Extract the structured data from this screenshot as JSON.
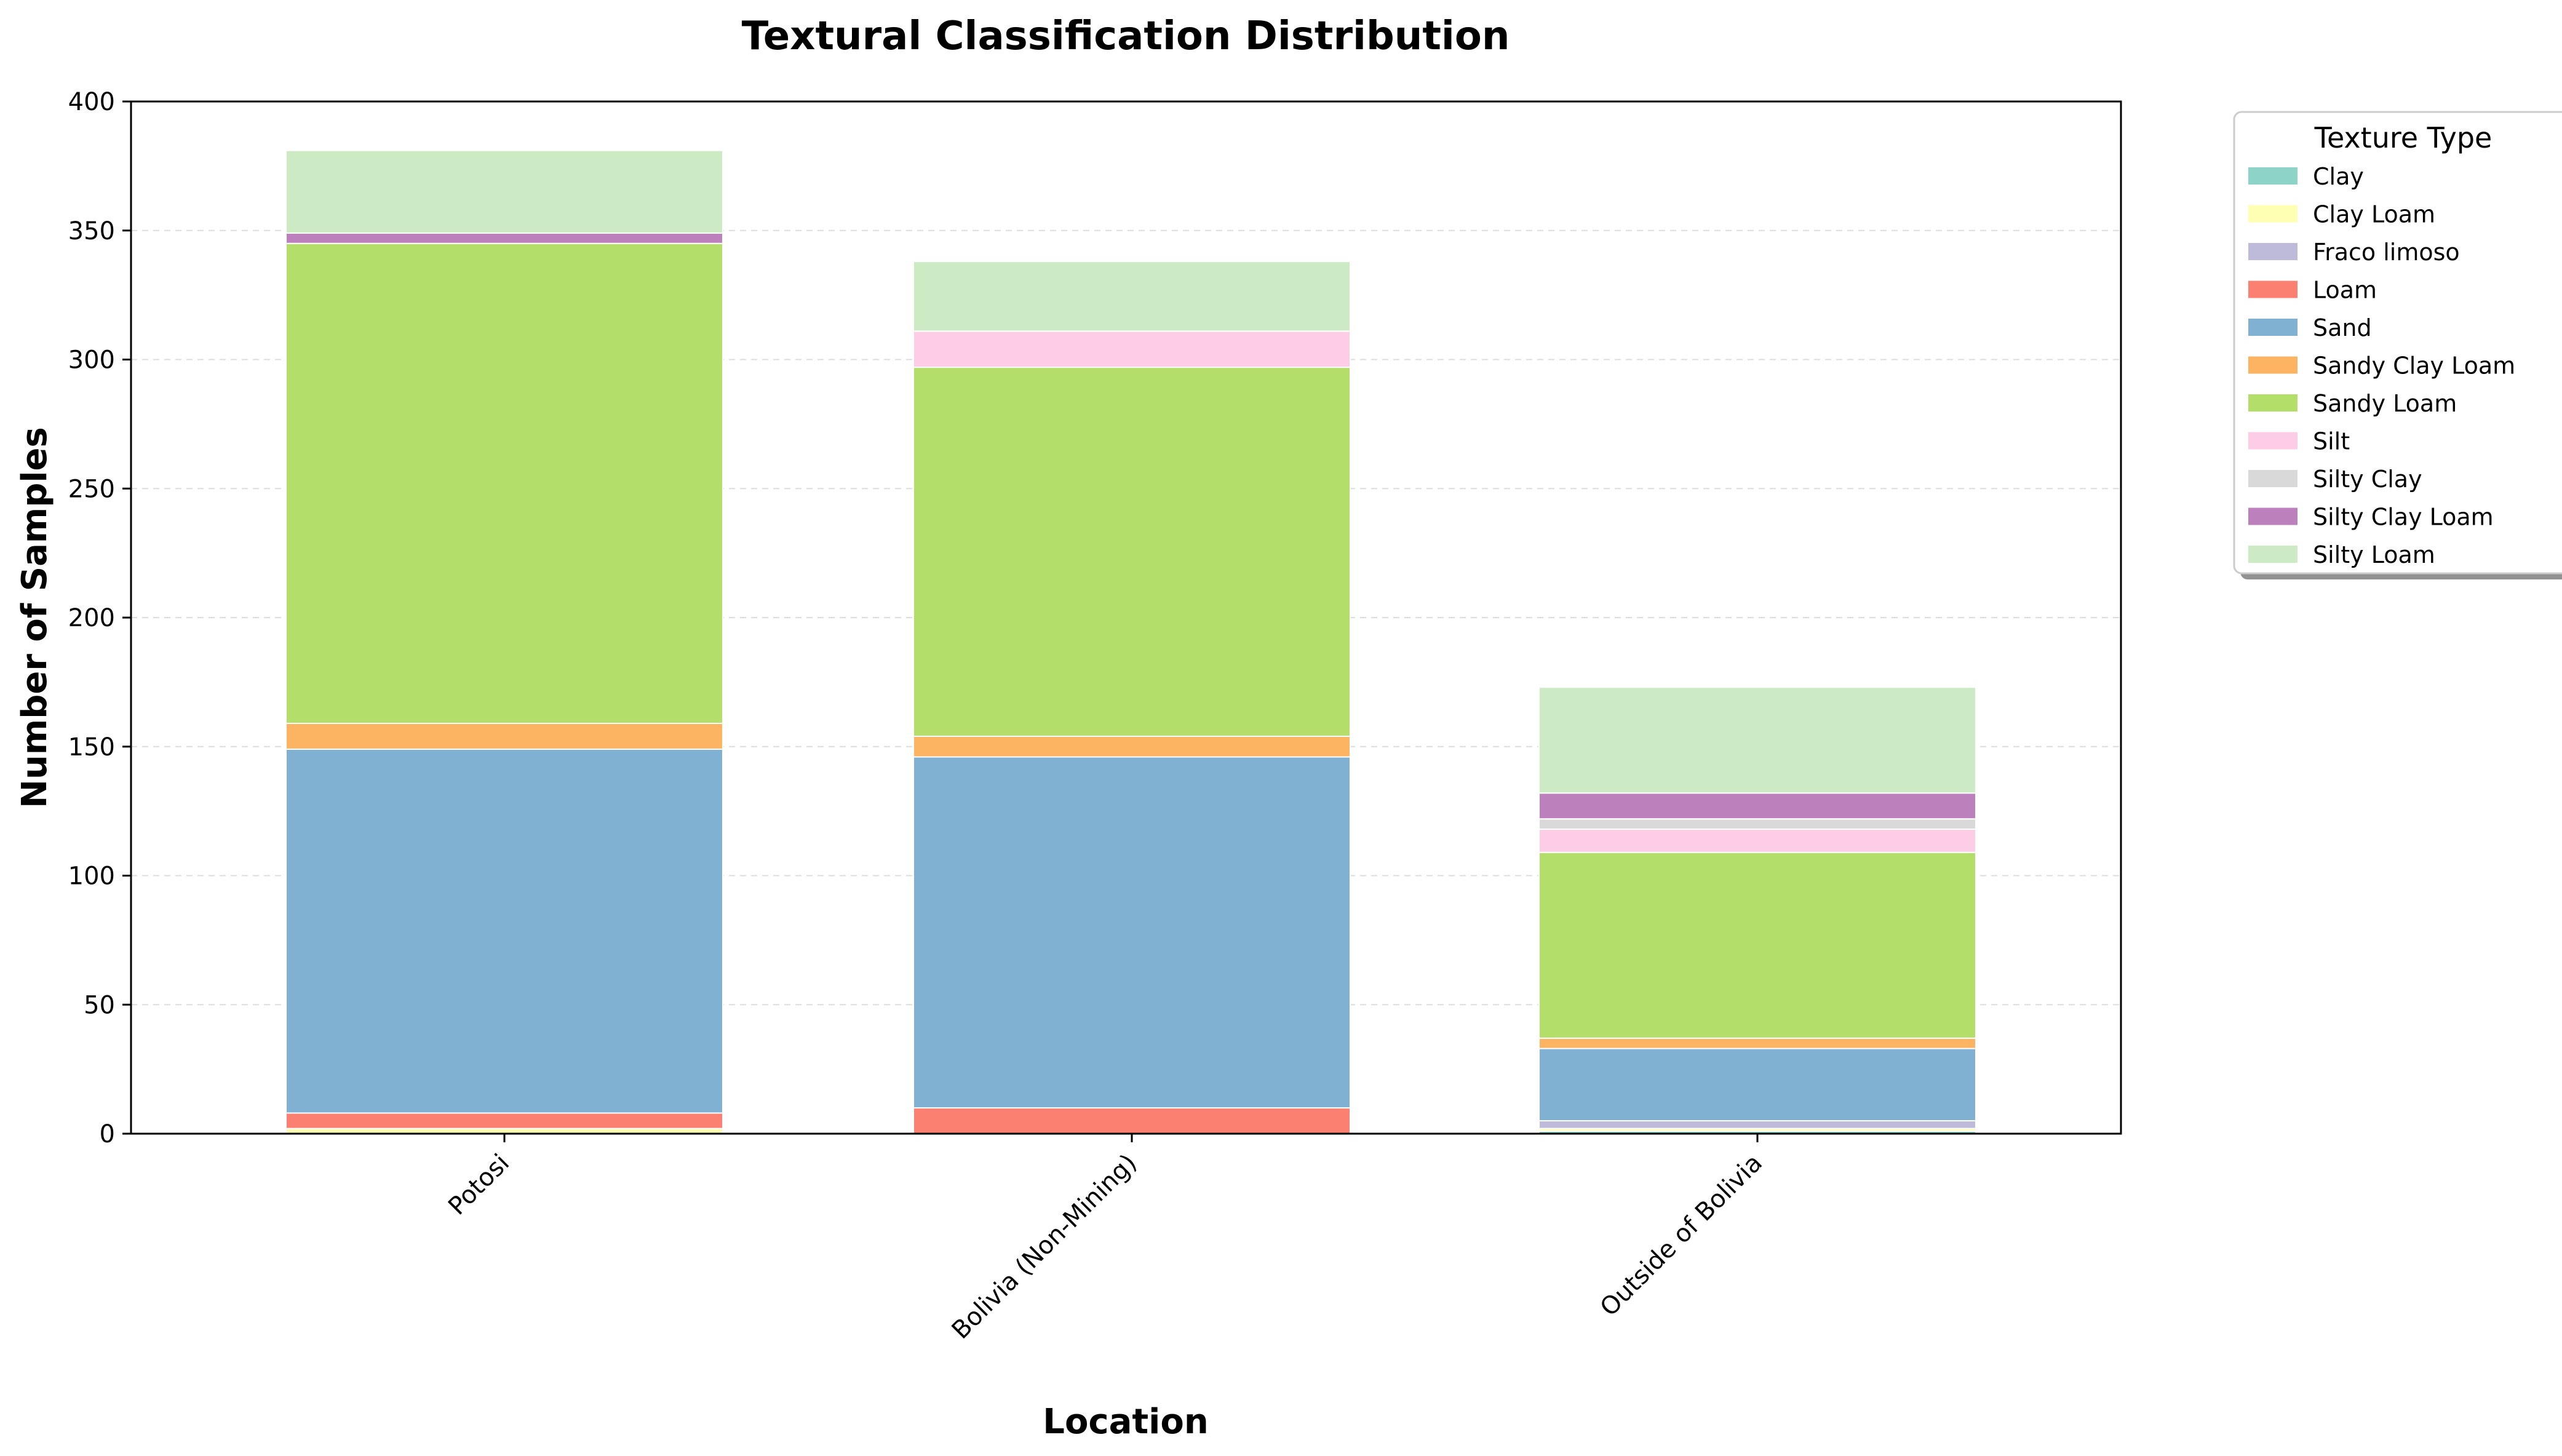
{
  "chart_data": {
    "type": "bar",
    "stacked": true,
    "title": "Textural Classification Distribution",
    "xlabel": "Location",
    "ylabel": "Number of Samples",
    "ylim": [
      0,
      400
    ],
    "yticks": [
      0,
      50,
      100,
      150,
      200,
      250,
      300,
      350,
      400
    ],
    "grid": "horizontal dashed",
    "legend_title": "Texture Type",
    "legend_position": "outside right",
    "categories": [
      "Potosi",
      "Bolivia (Non-Mining)",
      "Outside of Bolivia"
    ],
    "series": [
      {
        "name": "Clay",
        "color": "#8dd3c7",
        "values": [
          0,
          0,
          1
        ]
      },
      {
        "name": "Clay Loam",
        "color": "#ffffb3",
        "values": [
          2,
          0,
          1
        ]
      },
      {
        "name": "Fraco limoso",
        "color": "#bebada",
        "values": [
          0,
          0,
          3
        ]
      },
      {
        "name": "Loam",
        "color": "#fb8072",
        "values": [
          6,
          10,
          0
        ]
      },
      {
        "name": "Sand",
        "color": "#80b1d3",
        "values": [
          141,
          136,
          28
        ]
      },
      {
        "name": "Sandy Clay Loam",
        "color": "#fdb462",
        "values": [
          10,
          8,
          4
        ]
      },
      {
        "name": "Sandy Loam",
        "color": "#b3de69",
        "values": [
          186,
          143,
          72
        ]
      },
      {
        "name": "Silt",
        "color": "#fccde5",
        "values": [
          0,
          14,
          9
        ]
      },
      {
        "name": "Silty Clay",
        "color": "#d9d9d9",
        "values": [
          0,
          0,
          4
        ]
      },
      {
        "name": "Silty Clay Loam",
        "color": "#bc80bd",
        "values": [
          4,
          0,
          10
        ]
      },
      {
        "name": "Silty Loam",
        "color": "#ccebc5",
        "values": [
          32,
          27,
          41
        ]
      }
    ]
  }
}
